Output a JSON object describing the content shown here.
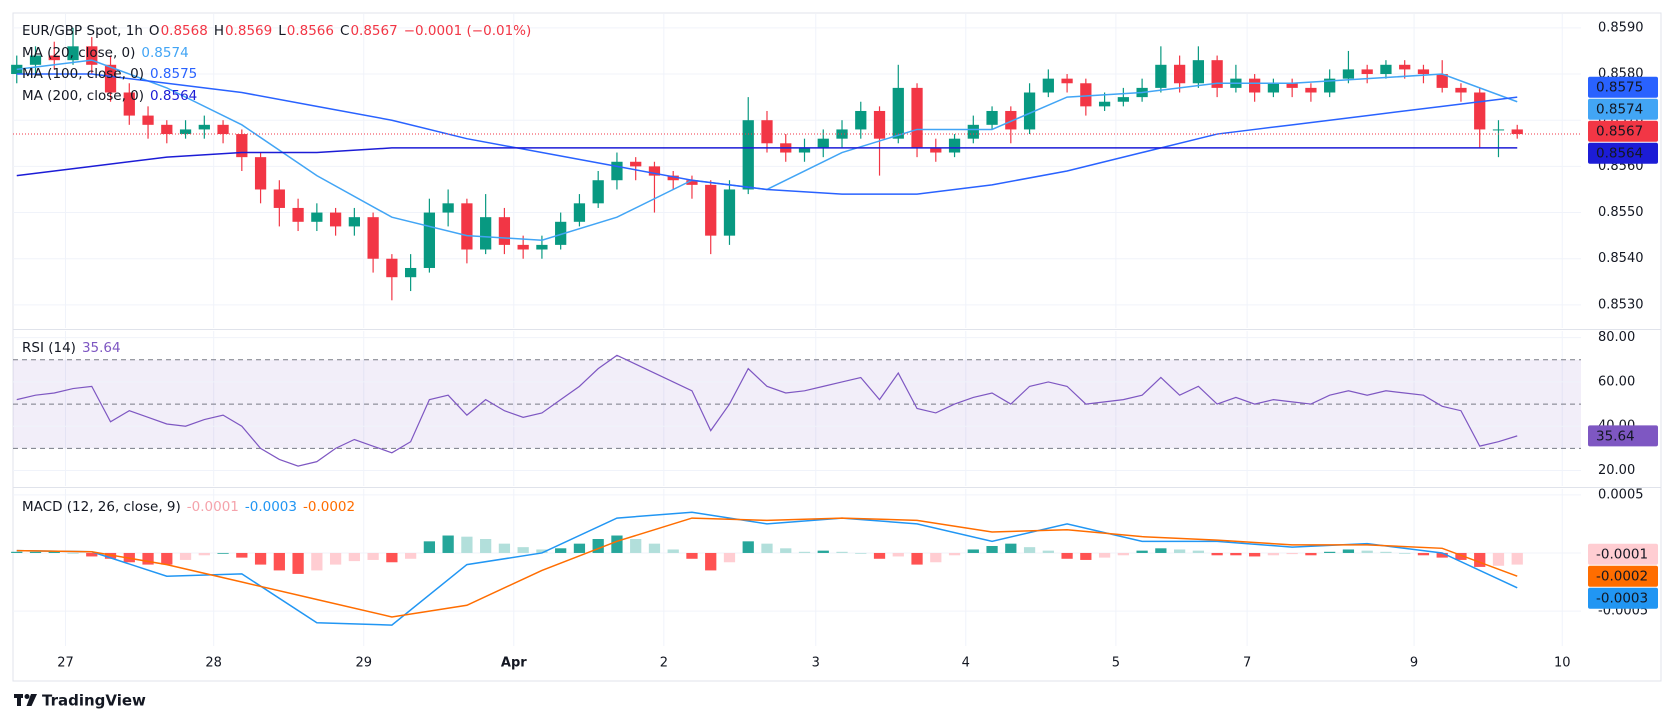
{
  "chart_data": [
    {
      "type": "candlestick",
      "title": "EUR/GBP Spot, 1h",
      "ohlc_keys": [
        "O",
        "H",
        "L",
        "C"
      ],
      "change": "−0.0001 (−0.01%)",
      "up_color": "#089981",
      "down_color": "#f23645",
      "x": [
        0,
        1,
        2,
        3,
        4,
        5,
        6,
        7,
        8,
        9,
        10,
        11,
        12,
        13,
        14,
        15,
        16,
        17,
        18,
        19,
        20,
        21,
        22,
        23,
        24,
        25,
        26,
        27,
        28,
        29,
        30,
        31,
        32,
        33,
        34,
        35,
        36,
        37,
        38,
        39,
        40,
        41,
        42,
        43,
        44,
        45,
        46,
        47,
        48,
        49,
        50,
        51,
        52,
        53,
        54,
        55,
        56,
        57,
        58,
        59,
        60,
        61,
        62,
        63,
        64,
        65,
        66,
        67,
        68,
        69,
        70,
        71,
        72,
        73,
        74,
        75,
        76,
        77,
        78,
        79,
        80
      ],
      "open": [
        0.858,
        0.8582,
        0.8584,
        0.8583,
        0.8586,
        0.8582,
        0.8576,
        0.8571,
        0.8569,
        0.8567,
        0.8568,
        0.8569,
        0.8567,
        0.8562,
        0.8555,
        0.8551,
        0.8548,
        0.855,
        0.8547,
        0.8549,
        0.854,
        0.8536,
        0.8538,
        0.855,
        0.8552,
        0.8542,
        0.8549,
        0.8543,
        0.8542,
        0.8543,
        0.8548,
        0.8552,
        0.8557,
        0.8561,
        0.856,
        0.8558,
        0.8557,
        0.8556,
        0.8545,
        0.8555,
        0.857,
        0.8565,
        0.8563,
        0.8564,
        0.8566,
        0.8568,
        0.8572,
        0.8566,
        0.8577,
        0.8564,
        0.8563,
        0.8566,
        0.8569,
        0.8572,
        0.8568,
        0.8576,
        0.8579,
        0.8578,
        0.8573,
        0.8574,
        0.8575,
        0.8577,
        0.8582,
        0.8578,
        0.8583,
        0.8577,
        0.8579,
        0.8576,
        0.8578,
        0.8577,
        0.8576,
        0.8579,
        0.8581,
        0.858,
        0.8582,
        0.8581,
        0.858,
        0.8577,
        0.8576,
        0.8568,
        0.8568
      ],
      "high": [
        0.8584,
        0.8586,
        0.8587,
        0.859,
        0.8588,
        0.8584,
        0.8578,
        0.8573,
        0.857,
        0.857,
        0.8571,
        0.857,
        0.8568,
        0.8563,
        0.8557,
        0.8553,
        0.8552,
        0.8551,
        0.8551,
        0.855,
        0.8541,
        0.8541,
        0.8553,
        0.8555,
        0.8553,
        0.8554,
        0.8551,
        0.8545,
        0.8545,
        0.855,
        0.8554,
        0.8559,
        0.8563,
        0.8562,
        0.8561,
        0.8559,
        0.8558,
        0.8557,
        0.8557,
        0.8575,
        0.8572,
        0.8567,
        0.8566,
        0.8568,
        0.857,
        0.8574,
        0.8573,
        0.8582,
        0.8578,
        0.8566,
        0.8567,
        0.8571,
        0.8573,
        0.8573,
        0.8578,
        0.8581,
        0.858,
        0.8579,
        0.8576,
        0.8577,
        0.8579,
        0.8586,
        0.8584,
        0.8586,
        0.8584,
        0.8582,
        0.858,
        0.8579,
        0.8579,
        0.8578,
        0.8581,
        0.8585,
        0.8582,
        0.8583,
        0.8583,
        0.8582,
        0.8583,
        0.8578,
        0.8577,
        0.857,
        0.8569
      ],
      "low": [
        0.8578,
        0.858,
        0.8581,
        0.8582,
        0.858,
        0.8574,
        0.8569,
        0.8566,
        0.8565,
        0.8566,
        0.8566,
        0.8565,
        0.8559,
        0.8552,
        0.8547,
        0.8546,
        0.8546,
        0.8545,
        0.8545,
        0.8537,
        0.8531,
        0.8533,
        0.8537,
        0.8547,
        0.8539,
        0.8541,
        0.8541,
        0.854,
        0.854,
        0.8542,
        0.8547,
        0.8551,
        0.8555,
        0.8557,
        0.855,
        0.8555,
        0.8553,
        0.8541,
        0.8543,
        0.8554,
        0.8563,
        0.8561,
        0.8561,
        0.8562,
        0.8564,
        0.8566,
        0.8558,
        0.8565,
        0.8562,
        0.8561,
        0.8562,
        0.8565,
        0.8568,
        0.8565,
        0.8567,
        0.8575,
        0.8576,
        0.8571,
        0.8572,
        0.8573,
        0.8574,
        0.8576,
        0.8576,
        0.8577,
        0.8575,
        0.8576,
        0.8574,
        0.8575,
        0.8575,
        0.8574,
        0.8575,
        0.8578,
        0.8578,
        0.8579,
        0.8579,
        0.8578,
        0.8576,
        0.8574,
        0.8564,
        0.8562,
        0.8566
      ],
      "close": [
        0.8582,
        0.8584,
        0.8583,
        0.8586,
        0.8582,
        0.8576,
        0.8571,
        0.8569,
        0.8567,
        0.8568,
        0.8569,
        0.8567,
        0.8562,
        0.8555,
        0.8551,
        0.8548,
        0.855,
        0.8547,
        0.8549,
        0.854,
        0.8536,
        0.8538,
        0.855,
        0.8552,
        0.8542,
        0.8549,
        0.8543,
        0.8542,
        0.8543,
        0.8548,
        0.8552,
        0.8557,
        0.8561,
        0.856,
        0.8558,
        0.8557,
        0.8556,
        0.8545,
        0.8555,
        0.857,
        0.8565,
        0.8563,
        0.8564,
        0.8566,
        0.8568,
        0.8572,
        0.8566,
        0.8577,
        0.8564,
        0.8563,
        0.8566,
        0.8569,
        0.8572,
        0.8568,
        0.8576,
        0.8579,
        0.8578,
        0.8573,
        0.8574,
        0.8575,
        0.8577,
        0.8582,
        0.8578,
        0.8583,
        0.8577,
        0.8579,
        0.8576,
        0.8578,
        0.8577,
        0.8576,
        0.8579,
        0.8581,
        0.858,
        0.8582,
        0.8581,
        0.858,
        0.8577,
        0.8576,
        0.8568,
        0.8568,
        0.8567
      ],
      "series": [
        {
          "name": "MA (20, close, 0)",
          "color": "#42a5f5",
          "x": [
            0,
            4,
            8,
            12,
            16,
            20,
            24,
            28,
            32,
            36,
            40,
            44,
            48,
            52,
            56,
            60,
            64,
            68,
            72,
            76,
            80
          ],
          "values": [
            0.8581,
            0.8583,
            0.8577,
            0.8569,
            0.8558,
            0.8549,
            0.8545,
            0.8544,
            0.8549,
            0.8557,
            0.8555,
            0.8563,
            0.8568,
            0.8568,
            0.8575,
            0.8576,
            0.8578,
            0.8578,
            0.8579,
            0.858,
            0.8574
          ]
        },
        {
          "name": "MA (100, close, 0)",
          "color": "#2962ff",
          "x": [
            0,
            4,
            8,
            12,
            16,
            20,
            24,
            28,
            32,
            36,
            40,
            44,
            48,
            52,
            56,
            60,
            64,
            68,
            72,
            76,
            80
          ],
          "values": [
            0.858,
            0.858,
            0.8578,
            0.8576,
            0.8573,
            0.857,
            0.8566,
            0.8563,
            0.856,
            0.8557,
            0.8555,
            0.8554,
            0.8554,
            0.8556,
            0.8559,
            0.8563,
            0.8567,
            0.8569,
            0.8571,
            0.8573,
            0.8575
          ]
        },
        {
          "name": "MA (200, close, 0)",
          "color": "#1c1cd6",
          "x": [
            0,
            4,
            8,
            12,
            16,
            20,
            24,
            28,
            32,
            36,
            40,
            44,
            48,
            52,
            56,
            60,
            64,
            68,
            72,
            76,
            80
          ],
          "values": [
            0.8558,
            0.856,
            0.8562,
            0.8563,
            0.8563,
            0.8564,
            0.8564,
            0.8564,
            0.8564,
            0.8564,
            0.8564,
            0.8564,
            0.8564,
            0.8564,
            0.8564,
            0.8564,
            0.8564,
            0.8564,
            0.8564,
            0.8564,
            0.8564
          ]
        }
      ],
      "xlim": [
        -0.2,
        83.4
      ],
      "xticks": [
        {
          "value": 2.6,
          "label": "27"
        },
        {
          "value": 10.5,
          "label": "28"
        },
        {
          "value": 18.5,
          "label": "29"
        },
        {
          "value": 26.5,
          "label": "Apr"
        },
        {
          "value": 34.5,
          "label": "2"
        },
        {
          "value": 42.6,
          "label": "3"
        },
        {
          "value": 50.6,
          "label": "4"
        },
        {
          "value": 58.6,
          "label": "5"
        },
        {
          "value": 65.6,
          "label": "7"
        },
        {
          "value": 74.5,
          "label": "9"
        },
        {
          "value": 82.4,
          "label": "10"
        }
      ],
      "ylim": [
        0.8525,
        0.8593
      ],
      "yticks": [
        {
          "value": 0.853,
          "label": "0.8530"
        },
        {
          "value": 0.854,
          "label": "0.8540"
        },
        {
          "value": 0.855,
          "label": "0.8550"
        },
        {
          "value": 0.856,
          "label": "0.8560"
        },
        {
          "value": 0.857,
          "label": "0.8570"
        },
        {
          "value": 0.858,
          "label": "0.8580"
        },
        {
          "value": 0.859,
          "label": "0.8590"
        }
      ],
      "grid": true,
      "last_price_line": true
    },
    {
      "type": "line",
      "series": [
        {
          "name": "RSI (14)",
          "color": "#7e57c2",
          "values": [
            52,
            54,
            55,
            57,
            58,
            42,
            47,
            44,
            41,
            40,
            43,
            45,
            40,
            30,
            25,
            22,
            24,
            30,
            34,
            31,
            28,
            33,
            52,
            54,
            45,
            52,
            47,
            44,
            46,
            52,
            58,
            66,
            72,
            68,
            64,
            60,
            56,
            38,
            50,
            66,
            58,
            55,
            56,
            58,
            60,
            62,
            52,
            64,
            48,
            46,
            50,
            53,
            55,
            50,
            58,
            60,
            58,
            50,
            51,
            52,
            54,
            62,
            54,
            58,
            50,
            53,
            50,
            52,
            51,
            50,
            54,
            56,
            54,
            56,
            55,
            54,
            49,
            47,
            31,
            33,
            35.64
          ]
        }
      ],
      "band": [
        30,
        70
      ],
      "midline": 50,
      "ylim": [
        13,
        83
      ],
      "yticks": [
        {
          "value": 20,
          "label": "20.00"
        },
        {
          "value": 40,
          "label": "40.00"
        },
        {
          "value": 60,
          "label": "60.00"
        },
        {
          "value": 80,
          "label": "80.00"
        }
      ],
      "grid": true
    },
    {
      "type": "macd",
      "title": "MACD (12, 26, close, 9)",
      "histogram": {
        "colors": {
          "up_strong": "#26a69a",
          "up_weak": "#b2dfdb",
          "down_strong": "#ff5252",
          "down_weak": "#ffcdd2"
        },
        "values": [
          1e-05,
          1e-05,
          2e-05,
          0,
          -3e-05,
          -5e-05,
          -8e-05,
          -0.0001,
          -0.0001,
          -6e-05,
          -2e-05,
          0,
          -4e-05,
          -0.0001,
          -0.00015,
          -0.00018,
          -0.00015,
          -0.0001,
          -7e-05,
          -6e-05,
          -8e-05,
          -5e-05,
          0.0001,
          0.00015,
          0.00014,
          0.00012,
          8e-05,
          5e-05,
          3e-05,
          4e-05,
          8e-05,
          0.00012,
          0.00015,
          0.00012,
          8e-05,
          3e-05,
          -5e-05,
          -0.00015,
          -8e-05,
          0.0001,
          8e-05,
          4e-05,
          1e-05,
          2e-05,
          1e-05,
          0,
          -5e-05,
          -3e-05,
          -0.0001,
          -8e-05,
          -2e-05,
          3e-05,
          6e-05,
          8e-05,
          5e-05,
          2e-05,
          -5e-05,
          -6e-05,
          -4e-05,
          -2e-05,
          2e-05,
          4e-05,
          3e-05,
          2e-05,
          -2e-05,
          -2e-05,
          -3e-05,
          -2e-05,
          -1e-05,
          -2e-05,
          1e-05,
          3e-05,
          2e-05,
          1e-05,
          0,
          -2e-05,
          -4e-05,
          -6e-05,
          -0.00012,
          -0.00011,
          -0.0001
        ]
      },
      "series": [
        {
          "color": "#2196f3",
          "x": [
            0,
            4,
            8,
            12,
            16,
            20,
            24,
            28,
            32,
            36,
            40,
            44,
            48,
            52,
            56,
            60,
            64,
            68,
            72,
            76,
            80
          ],
          "values": [
            2e-05,
            1e-05,
            -0.0002,
            -0.00018,
            -0.0006,
            -0.00062,
            -0.0001,
            0,
            0.0003,
            0.00035,
            0.00025,
            0.0003,
            0.00025,
            0.0001,
            0.00025,
            0.0001,
            0.0001,
            5e-05,
            8e-05,
            0,
            -0.0003
          ]
        },
        {
          "color": "#ff6d00",
          "x": [
            0,
            4,
            8,
            12,
            16,
            20,
            24,
            28,
            32,
            36,
            40,
            44,
            48,
            52,
            56,
            60,
            64,
            68,
            72,
            76,
            80
          ],
          "values": [
            2e-05,
            1e-05,
            -0.0001,
            -0.00025,
            -0.0004,
            -0.00055,
            -0.00045,
            -0.00015,
            0.0001,
            0.0003,
            0.00028,
            0.0003,
            0.00028,
            0.00018,
            0.0002,
            0.00014,
            0.00011,
            7e-05,
            7e-05,
            4e-05,
            -0.0002
          ]
        }
      ],
      "ylim": [
        -0.0008,
        0.00055
      ],
      "yticks": [
        -0.0005,
        {
          "value": 0,
          "label": "0.0000"
        },
        0.0005
      ],
      "grid": true
    }
  ],
  "footer": {
    "brand": "TradingView"
  }
}
